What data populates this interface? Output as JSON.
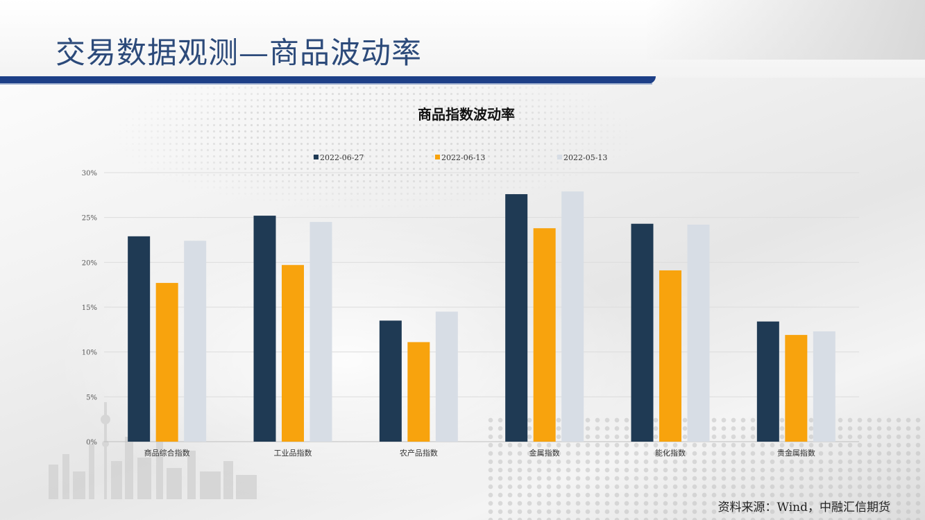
{
  "page": {
    "title": "交易数据观测—商品波动率",
    "source": "资料来源：Wind，中融汇信期货"
  },
  "colors": {
    "accent_bar": "#1d3f87",
    "title_text": "#2c4a7a"
  },
  "chart_data": {
    "type": "bar",
    "title": "商品指数波动率",
    "xlabel": "",
    "ylabel": "",
    "categories": [
      "商品综合指数",
      "工业品指数",
      "农产品指数",
      "金属指数",
      "能化指数",
      "贵金属指数"
    ],
    "series": [
      {
        "name": "2022-06-27",
        "color": "#1f3a54",
        "values": [
          22.9,
          25.2,
          13.5,
          27.6,
          24.3,
          13.4
        ]
      },
      {
        "name": "2022-06-13",
        "color": "#f8a30d",
        "values": [
          17.7,
          19.7,
          11.1,
          23.8,
          19.1,
          11.9
        ]
      },
      {
        "name": "2022-05-13",
        "color": "#d7dde5",
        "values": [
          22.4,
          24.5,
          14.5,
          27.9,
          24.2,
          12.3
        ]
      }
    ],
    "ylim": [
      0,
      30
    ],
    "yticks": [
      0,
      5,
      10,
      15,
      20,
      25,
      30
    ],
    "ytick_labels": [
      "0%",
      "5%",
      "10%",
      "15%",
      "20%",
      "25%",
      "30%"
    ],
    "grid": true,
    "legend_position": "top-center"
  }
}
